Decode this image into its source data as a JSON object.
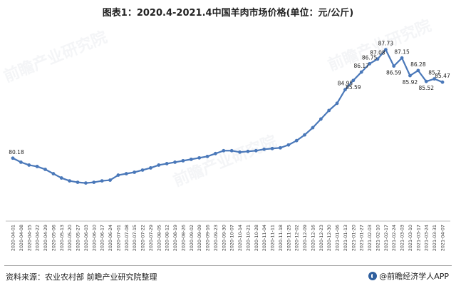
{
  "chart_data": {
    "type": "line",
    "title": "图表1：2020.4-2021.4中国羊肉市场价格(单位：元/公斤)",
    "x": [
      "2020-04-01",
      "2020-04-08",
      "2020-04-15",
      "2020-04-22",
      "2020-04-29",
      "2020-05-06",
      "2020-05-13",
      "2020-05-20",
      "2020-05-27",
      "2020-06-03",
      "2020-06-10",
      "2020-06-17",
      "2020-06-24",
      "2020-07-01",
      "2020-07-08",
      "2020-07-15",
      "2020-07-22",
      "2020-07-29",
      "2020-08-05",
      "2020-08-12",
      "2020-08-19",
      "2020-08-26",
      "2020-09-02",
      "2020-09-09",
      "2020-09-16",
      "2020-09-23",
      "2020-09-30",
      "2020-10-07",
      "2020-10-14",
      "2020-10-21",
      "2020-10-28",
      "2020-11-04",
      "2020-11-11",
      "2020-11-18",
      "2020-11-25",
      "2020-12-02",
      "2020-12-09",
      "2020-12-16",
      "2020-12-23",
      "2020-12-30",
      "2021-01-06",
      "2021-01-13",
      "2021-01-20",
      "2021-01-27",
      "2021-02-03",
      "2021-02-10",
      "2021-02-17",
      "2021-02-24",
      "2021-03-03",
      "2021-03-10",
      "2021-03-17",
      "2021-03-24",
      "2021-03-31",
      "2021-04-07"
    ],
    "x_tick_labels": [
      "2020-04-01",
      "2020-04-08",
      "2020-04-15",
      "2020-04-22",
      "2020-04-29",
      "2020-05-06",
      "2020-05-13",
      "2020-05-20",
      "2020-05-27",
      "2020-06-03",
      "2020-06-10",
      "2020-06-17",
      "2020-06-24",
      "2020-07-01",
      "2020-07-08",
      "2020-07-15",
      "2020-07-22",
      "2020-07-29",
      "2020-08-05",
      "2020-08-12",
      "2020-08-19",
      "2020-08-26",
      "2020-09-02",
      "2020-09-09",
      "2020-09-16",
      "2020-09-23",
      "2020-09-30",
      "2020-10-07",
      "2020-10-14",
      "2020-10-21",
      "2020-10-28",
      "2020-11-04",
      "2020-11-11",
      "2020-11-18",
      "2020-11-25",
      "2020-12-02",
      "2020-12-09",
      "2020-12-16",
      "2020-12-23",
      "2020-12-30",
      "2021-01-06",
      "2021-01-13",
      "2021-01-20",
      "2021-01-27",
      "2021-02-03",
      "2021-02-10",
      "2021-02-17",
      "2021-02-24",
      "2021-03-03",
      "2021-03-10",
      "2021-03-17",
      "2021-03-24",
      "2021-03-31",
      "2021-04-07"
    ],
    "series": [
      {
        "values": [
          80.18,
          79.9,
          79.7,
          79.6,
          79.4,
          79.1,
          78.8,
          78.6,
          78.5,
          78.45,
          78.5,
          78.6,
          78.65,
          79.0,
          79.1,
          79.2,
          79.35,
          79.5,
          79.7,
          79.8,
          79.9,
          80.0,
          80.1,
          80.2,
          80.3,
          80.5,
          80.7,
          80.7,
          80.6,
          80.65,
          80.7,
          80.8,
          80.85,
          80.9,
          81.1,
          81.4,
          81.8,
          82.3,
          82.9,
          83.5,
          84.0,
          84.95,
          85.59,
          86.17,
          86.75,
          87.08,
          87.73,
          86.59,
          87.15,
          85.92,
          86.28,
          85.52,
          85.7,
          85.47
        ],
        "color": "#4a78b9"
      }
    ],
    "data_labels": [
      {
        "index": 0,
        "text": "80.18"
      },
      {
        "index": 41,
        "text": "84.95"
      },
      {
        "index": 42,
        "text": "85.59"
      },
      {
        "index": 43,
        "text": "86.17"
      },
      {
        "index": 44,
        "text": "86.75"
      },
      {
        "index": 45,
        "text": "87.08"
      },
      {
        "index": 46,
        "text": "87.73"
      },
      {
        "index": 47,
        "text": "86.59"
      },
      {
        "index": 48,
        "text": "87.15"
      },
      {
        "index": 49,
        "text": "85.92"
      },
      {
        "index": 50,
        "text": "86.28"
      },
      {
        "index": 51,
        "text": "85.52"
      },
      {
        "index": 52,
        "text": "85.7"
      },
      {
        "index": 53,
        "text": "85.47"
      }
    ],
    "ylim": [
      75.8,
      89.4
    ],
    "grid": false,
    "axis_color": "#bfbfbf"
  },
  "footer": {
    "source": "资料来源：农业农村部 前瞻产业研究院整理",
    "brand": "@前瞻经济学人APP"
  },
  "watermark": "前瞻产业研究院"
}
